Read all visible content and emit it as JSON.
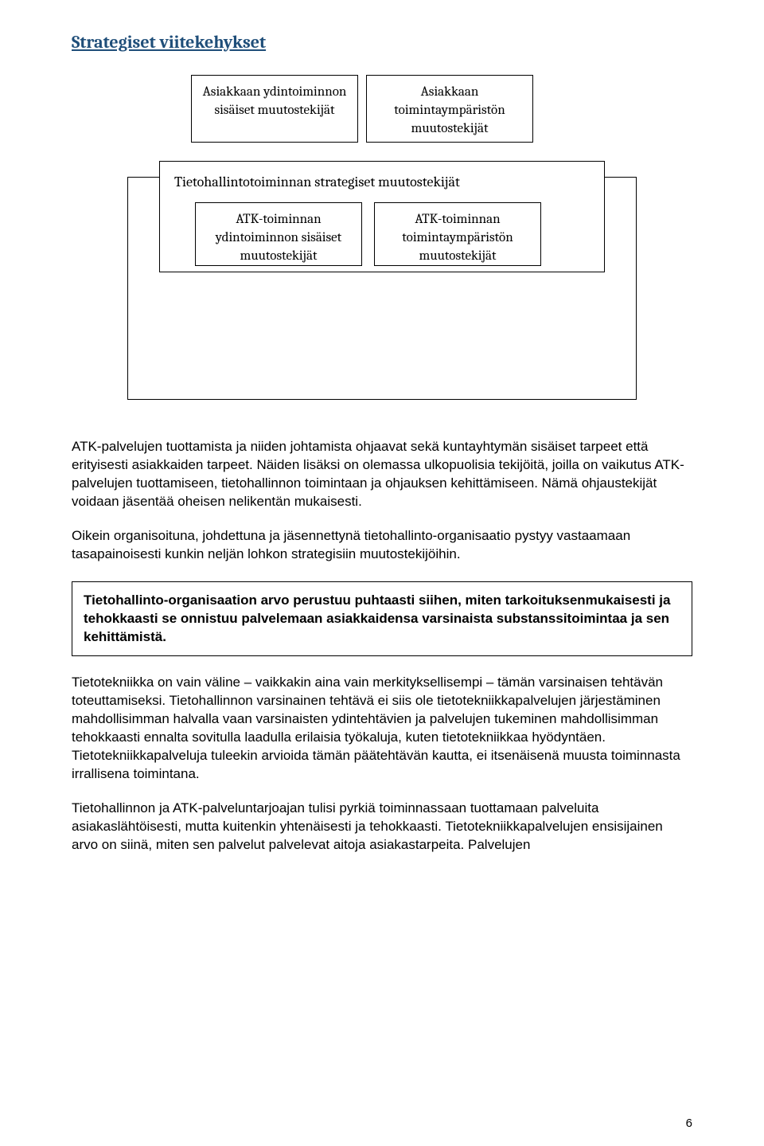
{
  "title": "Strategiset viitekehykset",
  "diagram": {
    "topLeft": "Asiakkaan ydintoiminnon sisäiset muutostekijät",
    "topRight": "Asiakkaan toimintaympäristön muutostekijät",
    "middle": "Tietohallintotoiminnan strategiset muutostekijät",
    "bottomLeft": "ATK-toiminnan ydintoiminnon sisäiset muutostekijät",
    "bottomRight": "ATK-toiminnan toimintaympäristön muutostekijät"
  },
  "paragraphs": {
    "p1": "ATK-palvelujen tuottamista ja niiden johtamista ohjaavat sekä kuntayhtymän sisäiset tarpeet että erityisesti asiakkaiden tarpeet. Näiden lisäksi on olemassa ulkopuolisia tekijöitä, joilla on vaikutus ATK-palvelujen tuottamiseen, tietohallinnon toimintaan ja ohjauksen kehittämiseen. Nämä ohjaustekijät voidaan jäsentää oheisen nelikentän mukaisesti.",
    "p2": "Oikein organisoituna, johdettuna ja jäsennettynä tietohallinto-organisaatio pystyy vastaamaan tasapainoisesti kunkin neljän lohkon strategisiin muutostekijöihin.",
    "callout": "Tietohallinto-organisaation arvo perustuu puhtaasti siihen, miten tarkoituksenmukaisesti ja tehokkaasti se onnistuu palvelemaan asiakkaidensa varsinaista substanssitoimintaa ja sen kehittämistä.",
    "p3": "Tietotekniikka on vain väline – vaikkakin aina vain merkityksellisempi – tämän varsinaisen tehtävän toteuttamiseksi. Tietohallinnon varsinainen tehtävä ei siis ole tietotekniikkapalvelujen järjestäminen mahdollisimman halvalla vaan varsinaisten ydintehtävien ja palvelujen tukeminen mahdollisimman tehokkaasti ennalta sovitulla laadulla erilaisia työkaluja, kuten tietotekniikkaa hyödyntäen. Tietotekniikkapalveluja tuleekin arvioida tämän päätehtävän kautta, ei itsenäisenä muusta toiminnasta irrallisena toimintana.",
    "p4": "Tietohallinnon ja ATK-palveluntarjoajan tulisi pyrkiä toiminnassaan tuottamaan palveluita asiakaslähtöisesti, mutta kuitenkin yhtenäisesti ja tehokkaasti. Tietotekniikkapalvelujen ensisijainen arvo on siinä, miten sen palvelut palvelevat aitoja asiakastarpeita. Palvelujen"
  },
  "pageNumber": "6",
  "colors": {
    "titleColor": "#1f4e79",
    "text": "#000000",
    "background": "#ffffff",
    "border": "#000000"
  },
  "fonts": {
    "heading": "Cambria",
    "body": "Arial",
    "diagram": "Cambria"
  }
}
